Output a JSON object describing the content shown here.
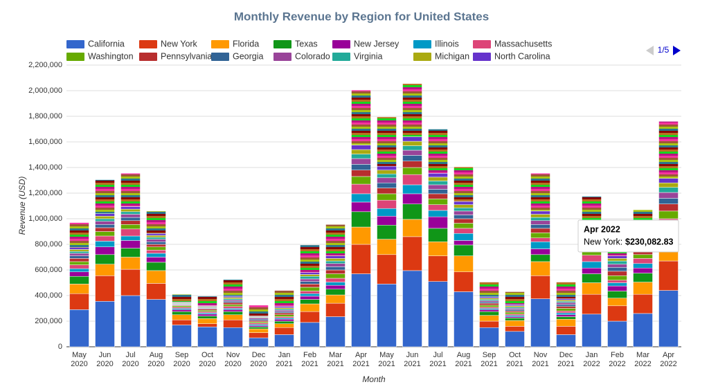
{
  "chart_data": {
    "type": "stacked_bar",
    "title": "Monthly Revenue by Region for United States",
    "x_label": "Month",
    "y_label": "Revenue (USD)",
    "legend_page": "1/5",
    "categories": [
      "May 2020",
      "Jun 2020",
      "Jul 2020",
      "Aug 2020",
      "Sep 2020",
      "Oct 2020",
      "Nov 2020",
      "Dec 2020",
      "Jan 2021",
      "Feb 2021",
      "Mar 2021",
      "Apr 2021",
      "May 2021",
      "Jun 2021",
      "Jul 2021",
      "Aug 2021",
      "Sep 2021",
      "Oct 2021",
      "Nov 2021",
      "Dec 2021",
      "Jan 2022",
      "Feb 2022",
      "Mar 2022",
      "Apr 2022"
    ],
    "ylim": [
      0,
      2200000
    ],
    "yticks": [
      0,
      {
        "value": 200000,
        "label": "200,000"
      },
      {
        "value": 400000,
        "label": "400,000"
      },
      {
        "value": 600000,
        "label": "600,000"
      },
      {
        "value": 800000,
        "label": "800,000"
      },
      {
        "value": 1000000,
        "label": "1,000,000"
      },
      {
        "value": 1200000,
        "label": "1,200,000"
      },
      {
        "value": 1400000,
        "label": "1,400,000"
      },
      {
        "value": 1600000,
        "label": "1,600,000"
      },
      {
        "value": 1800000,
        "label": "1,800,000"
      },
      {
        "value": 2000000,
        "label": "2,000,000"
      },
      {
        "value": 2200000,
        "label": "2,200,000"
      }
    ],
    "grid": true,
    "series": [
      {
        "name": "California",
        "color": "#3366cc",
        "values": [
          290000,
          355000,
          400000,
          370000,
          170000,
          155000,
          150000,
          70000,
          95000,
          190000,
          235000,
          570000,
          490000,
          595000,
          510000,
          430000,
          150000,
          120000,
          375000,
          95000,
          255000,
          200000,
          260000,
          440000
        ]
      },
      {
        "name": "New York",
        "color": "#dc3912",
        "values": [
          125000,
          200000,
          205000,
          125000,
          40000,
          25000,
          60000,
          40000,
          55000,
          85000,
          105000,
          230000,
          230000,
          265000,
          200000,
          155000,
          50000,
          40000,
          180000,
          65000,
          155000,
          120000,
          150000,
          230082.83
        ]
      },
      {
        "name": "Florida",
        "color": "#ff9900",
        "values": [
          75000,
          90000,
          95000,
          100000,
          40000,
          40000,
          40000,
          30000,
          30000,
          60000,
          65000,
          135000,
          120000,
          135000,
          110000,
          125000,
          45000,
          45000,
          110000,
          55000,
          90000,
          60000,
          95000,
          80000
        ]
      },
      {
        "name": "Texas",
        "color": "#109618",
        "values": [
          60000,
          75000,
          70000,
          65000,
          25000,
          20000,
          25000,
          15000,
          20000,
          35000,
          45000,
          120000,
          110000,
          120000,
          105000,
          85000,
          30000,
          20000,
          55000,
          20000,
          70000,
          55000,
          70000,
          70000
        ]
      },
      {
        "name": "New Jersey",
        "color": "#990099",
        "values": [
          35000,
          60000,
          60000,
          40000,
          15000,
          15000,
          15000,
          10000,
          15000,
          25000,
          30000,
          75000,
          70000,
          80000,
          90000,
          35000,
          15000,
          10000,
          45000,
          15000,
          45000,
          40000,
          40000,
          60000
        ]
      },
      {
        "name": "Illinois",
        "color": "#0099c6",
        "values": [
          25000,
          45000,
          35000,
          30000,
          10000,
          10000,
          10000,
          10000,
          10000,
          20000,
          25000,
          65000,
          60000,
          70000,
          50000,
          55000,
          10000,
          10000,
          55000,
          15000,
          50000,
          25000,
          35000,
          70000
        ]
      },
      {
        "name": "Massachusetts",
        "color": "#dd4477",
        "values": [
          30000,
          40000,
          55000,
          25000,
          10000,
          10000,
          15000,
          10000,
          10000,
          20000,
          30000,
          75000,
          65000,
          80000,
          45000,
          40000,
          10000,
          10000,
          30000,
          15000,
          50000,
          20000,
          40000,
          50000
        ]
      },
      {
        "name": "Washington",
        "color": "#66aa00",
        "values": [
          25000,
          35000,
          35000,
          25000,
          10000,
          10000,
          15000,
          10000,
          15000,
          30000,
          35000,
          60000,
          50000,
          55000,
          45000,
          40000,
          15000,
          15000,
          40000,
          20000,
          35000,
          35000,
          30000,
          60000
        ]
      },
      {
        "name": "Pennsylvania",
        "color": "#b82e2e",
        "values": [
          25000,
          30000,
          30000,
          20000,
          5000,
          10000,
          15000,
          10000,
          15000,
          25000,
          30000,
          50000,
          45000,
          50000,
          40000,
          35000,
          15000,
          10000,
          35000,
          15000,
          35000,
          35000,
          25000,
          55000
        ]
      },
      {
        "name": "Georgia",
        "color": "#316395",
        "values": [
          20000,
          25000,
          25000,
          20000,
          5000,
          5000,
          10000,
          10000,
          10000,
          20000,
          25000,
          45000,
          40000,
          45000,
          35000,
          30000,
          10000,
          10000,
          30000,
          15000,
          30000,
          30000,
          25000,
          45000
        ]
      },
      {
        "name": "Colorado",
        "color": "#994499",
        "values": [
          20000,
          25000,
          25000,
          20000,
          5000,
          5000,
          10000,
          10000,
          10000,
          20000,
          25000,
          45000,
          40000,
          40000,
          35000,
          30000,
          10000,
          10000,
          30000,
          15000,
          25000,
          25000,
          20000,
          45000
        ]
      },
      {
        "name": "Virginia",
        "color": "#22aa99",
        "values": [
          15000,
          20000,
          20000,
          15000,
          5000,
          5000,
          10000,
          5000,
          10000,
          20000,
          20000,
          35000,
          30000,
          35000,
          30000,
          25000,
          10000,
          10000,
          25000,
          10000,
          25000,
          25000,
          20000,
          40000
        ]
      },
      {
        "name": "Michigan",
        "color": "#aaaa11",
        "values": [
          15000,
          20000,
          20000,
          15000,
          5000,
          5000,
          10000,
          5000,
          10000,
          15000,
          20000,
          35000,
          30000,
          35000,
          30000,
          25000,
          10000,
          10000,
          25000,
          10000,
          20000,
          20000,
          20000,
          35000
        ]
      },
      {
        "name": "North Carolina",
        "color": "#6633cc",
        "values": [
          15000,
          20000,
          20000,
          15000,
          5000,
          5000,
          10000,
          5000,
          10000,
          15000,
          20000,
          35000,
          30000,
          35000,
          30000,
          25000,
          10000,
          10000,
          25000,
          10000,
          20000,
          20000,
          20000,
          35000
        ]
      },
      {
        "values": [
          195000,
          265000,
          260000,
          175000,
          60000,
          75000,
          130000,
          85000,
          125000,
          215000,
          245000,
          430000,
          385000,
          415000,
          345000,
          270000,
          115000,
          100000,
          295000,
          130000,
          270000,
          275000,
          220000,
          445000
        ]
      }
    ],
    "tooltip": {
      "title": "Apr 2022",
      "label": "New York:",
      "value_label": "$230,082.83"
    }
  }
}
